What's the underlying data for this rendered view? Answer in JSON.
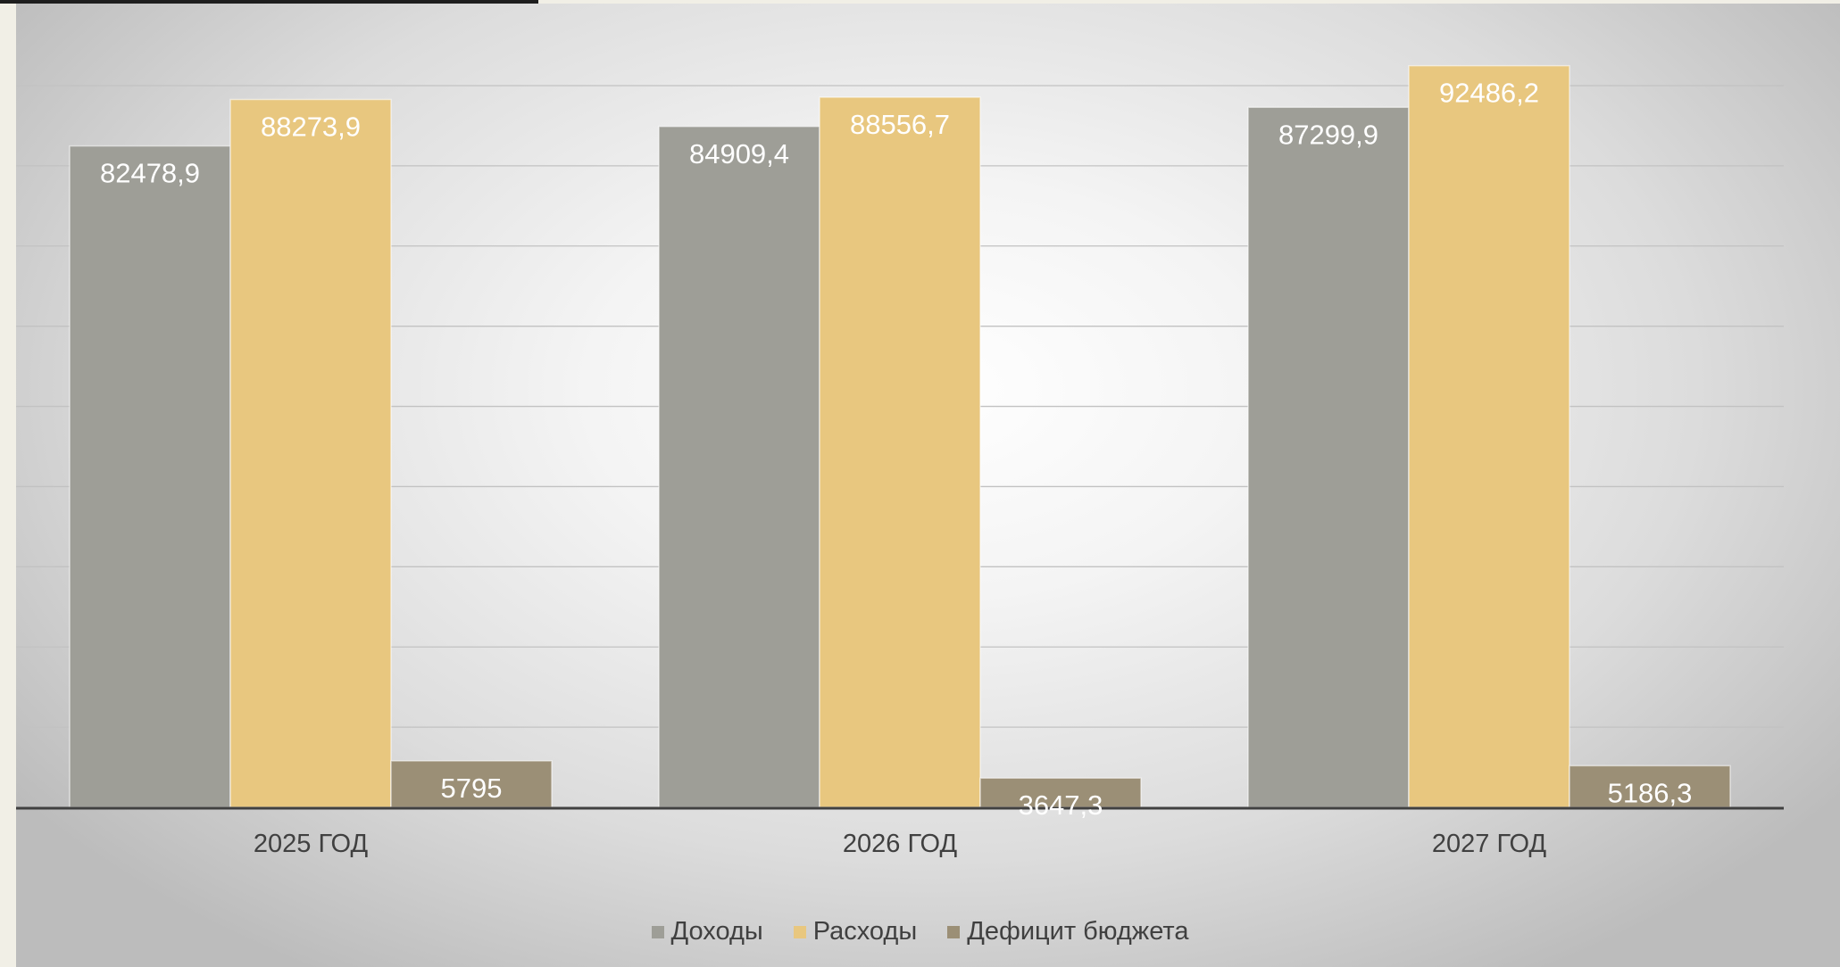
{
  "chart_data": {
    "type": "bar",
    "categories": [
      "2025 ГОД",
      "2026 ГОД",
      "2027 ГОД"
    ],
    "series": [
      {
        "name": "Доходы",
        "values": [
          82478.9,
          84909.4,
          87299.9
        ],
        "labels": [
          "82478,9",
          "84909,4",
          "87299,9"
        ],
        "color": "#9e9e97"
      },
      {
        "name": "Расходы",
        "values": [
          88273.9,
          88556.7,
          92486.2
        ],
        "labels": [
          "88273,9",
          "88556,7",
          "92486,2"
        ],
        "color": "#e8c77f"
      },
      {
        "name": "Дефицит бюджета",
        "values": [
          5795,
          3647.3,
          5186.3
        ],
        "labels": [
          "5795",
          "3647,3",
          "5186,3"
        ],
        "color": "#9b8f76"
      }
    ],
    "title": "",
    "xlabel": "",
    "ylabel": "",
    "ylim": [
      0,
      90000
    ],
    "gridlines": true,
    "legend_position": "bottom"
  }
}
